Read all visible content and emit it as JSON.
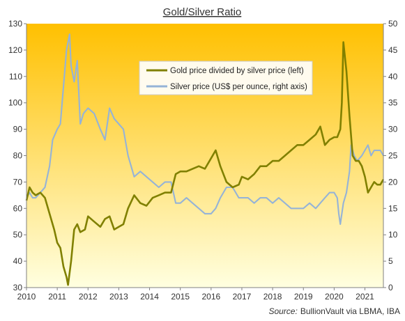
{
  "chart_data": {
    "type": "line",
    "title": "Gold/Silver Ratio",
    "source_label": "Source:",
    "source_text": "BullionVault via LBMA, IBA",
    "x_ticks": [
      "2010",
      "2011",
      "2012",
      "2013",
      "2014",
      "2015",
      "2016",
      "2017",
      "2018",
      "2019",
      "2020",
      "2021"
    ],
    "xlim": [
      2010,
      2021.6
    ],
    "ylim_left": [
      30,
      130
    ],
    "ylim_right": [
      0,
      50
    ],
    "y_ticks_left": [
      "30",
      "40",
      "50",
      "60",
      "70",
      "80",
      "90",
      "100",
      "110",
      "120",
      "130"
    ],
    "y_ticks_right": [
      "0",
      "5",
      "10",
      "15",
      "20",
      "25",
      "30",
      "35",
      "40",
      "45",
      "50"
    ],
    "grid": false,
    "legend_position": "top-center",
    "background": {
      "top_color": "#FFC000",
      "bottom_color": "#FFFFE0"
    },
    "series": [
      {
        "name": "Gold price divided by silver price (left)",
        "axis": "left",
        "color": "#808000",
        "x": [
          2010.0,
          2010.1,
          2010.2,
          2010.3,
          2010.45,
          2010.6,
          2010.75,
          2010.9,
          2011.0,
          2011.1,
          2011.2,
          2011.3,
          2011.35,
          2011.45,
          2011.55,
          2011.65,
          2011.75,
          2011.9,
          2012.0,
          2012.2,
          2012.4,
          2012.55,
          2012.7,
          2012.85,
          2013.0,
          2013.15,
          2013.3,
          2013.5,
          2013.7,
          2013.9,
          2014.1,
          2014.3,
          2014.5,
          2014.7,
          2014.85,
          2015.0,
          2015.2,
          2015.4,
          2015.6,
          2015.8,
          2016.0,
          2016.15,
          2016.3,
          2016.5,
          2016.7,
          2016.9,
          2017.0,
          2017.2,
          2017.4,
          2017.6,
          2017.8,
          2018.0,
          2018.2,
          2018.4,
          2018.6,
          2018.8,
          2019.0,
          2019.2,
          2019.4,
          2019.55,
          2019.7,
          2019.85,
          2020.0,
          2020.1,
          2020.2,
          2020.25,
          2020.3,
          2020.4,
          2020.5,
          2020.6,
          2020.7,
          2020.8,
          2020.9,
          2021.0,
          2021.1,
          2021.2,
          2021.3,
          2021.4,
          2021.5,
          2021.6
        ],
        "values": [
          63,
          68,
          66,
          65,
          66,
          64,
          58,
          52,
          47,
          45,
          38,
          34,
          31,
          40,
          52,
          54,
          51,
          52,
          57,
          55,
          53,
          56,
          57,
          52,
          53,
          54,
          60,
          65,
          62,
          61,
          64,
          65,
          66,
          66,
          73,
          74,
          74,
          75,
          76,
          75,
          79,
          82,
          76,
          70,
          68,
          69,
          72,
          71,
          73,
          76,
          76,
          78,
          78,
          80,
          82,
          84,
          84,
          86,
          88,
          91,
          84,
          86,
          87,
          87,
          90,
          100,
          123,
          112,
          95,
          80,
          78,
          78,
          76,
          72,
          66,
          68,
          70,
          69,
          69,
          71
        ]
      },
      {
        "name": "Silver price (US$ per ounce, right axis)",
        "axis": "right",
        "color": "#95B3D7",
        "x": [
          2010.0,
          2010.1,
          2010.2,
          2010.3,
          2010.45,
          2010.6,
          2010.75,
          2010.85,
          2011.0,
          2011.1,
          2011.2,
          2011.3,
          2011.4,
          2011.45,
          2011.55,
          2011.65,
          2011.75,
          2011.85,
          2012.0,
          2012.2,
          2012.4,
          2012.55,
          2012.7,
          2012.85,
          2013.0,
          2013.15,
          2013.3,
          2013.5,
          2013.7,
          2013.9,
          2014.1,
          2014.3,
          2014.5,
          2014.7,
          2014.85,
          2015.0,
          2015.2,
          2015.4,
          2015.6,
          2015.8,
          2016.0,
          2016.15,
          2016.3,
          2016.5,
          2016.7,
          2016.9,
          2017.0,
          2017.2,
          2017.4,
          2017.6,
          2017.8,
          2018.0,
          2018.2,
          2018.4,
          2018.6,
          2018.8,
          2019.0,
          2019.2,
          2019.4,
          2019.55,
          2019.7,
          2019.85,
          2020.0,
          2020.1,
          2020.15,
          2020.2,
          2020.3,
          2020.4,
          2020.5,
          2020.55,
          2020.65,
          2020.75,
          2020.9,
          2021.0,
          2021.1,
          2021.2,
          2021.3,
          2021.4,
          2021.5,
          2021.6
        ],
        "values": [
          17,
          18,
          17,
          17,
          18,
          19,
          23,
          28,
          30,
          31,
          38,
          45,
          48,
          42,
          39,
          43,
          31,
          33,
          34,
          33,
          30,
          28,
          34,
          32,
          31,
          30,
          25,
          21,
          22,
          21,
          20,
          19,
          20,
          20,
          16,
          16,
          17,
          16,
          15,
          14,
          14,
          15,
          17,
          19,
          19,
          17,
          17,
          17,
          16,
          17,
          17,
          16,
          17,
          16,
          15,
          15,
          15,
          16,
          15,
          16,
          17,
          18,
          18,
          17,
          14,
          12,
          16,
          18,
          22,
          27,
          25,
          24,
          25,
          26,
          27,
          25,
          26,
          26,
          26,
          25
        ]
      }
    ]
  }
}
